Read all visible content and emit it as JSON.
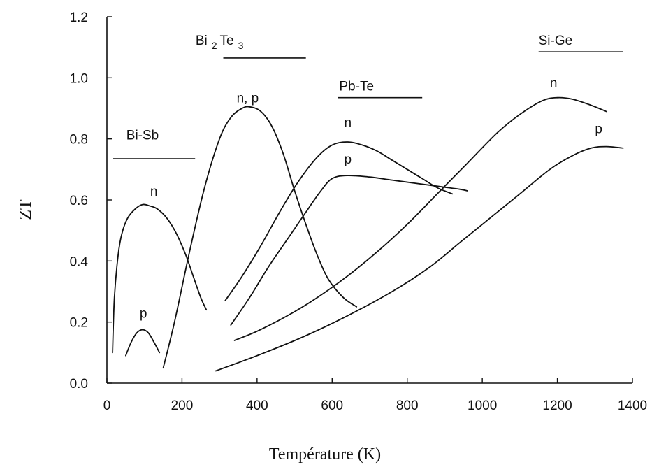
{
  "chart_data": {
    "type": "line",
    "title": "",
    "xlabel": "Température (K)",
    "ylabel": "ZT",
    "xlim": [
      0,
      1400
    ],
    "ylim": [
      0,
      1.2
    ],
    "xticks": [
      "0",
      "200",
      "400",
      "600",
      "800",
      "1000",
      "1200",
      "1400"
    ],
    "yticks": [
      "0.0",
      "0.2",
      "0.4",
      "0.6",
      "0.8",
      "1.0",
      "1.2"
    ],
    "grid": false,
    "legend": "none",
    "line_color": "#111111",
    "groups": [
      {
        "label": "Bi-Sb",
        "label_x": 95,
        "label_y": 0.775,
        "line_x": [
          15,
          235
        ],
        "line_y": 0.735
      },
      {
        "label": "Bi",
        "sub1": "2",
        "mid": "Te",
        "sub2": "3",
        "label_x": 300,
        "label_y": 1.085,
        "line_x": [
          310,
          530
        ],
        "line_y": 1.065
      },
      {
        "label": "Pb-Te",
        "label_x": 665,
        "label_y": 0.935,
        "line_x": [
          615,
          840
        ],
        "line_y": 0.935
      },
      {
        "label": "Si-Ge",
        "label_x": 1195,
        "label_y": 1.085,
        "line_x": [
          1150,
          1375
        ],
        "line_y": 1.085
      }
    ],
    "series": [
      {
        "name": "n",
        "group": "Bi-Sb",
        "label_x": 125,
        "label_y": 0.63,
        "x": [
          15,
          20,
          30,
          40,
          55,
          75,
          95,
          115,
          135,
          160,
          185,
          210,
          230,
          250,
          265
        ],
        "y": [
          0.1,
          0.28,
          0.42,
          0.49,
          0.54,
          0.57,
          0.585,
          0.58,
          0.57,
          0.54,
          0.49,
          0.42,
          0.35,
          0.28,
          0.24
        ]
      },
      {
        "name": "p",
        "group": "Bi-Sb",
        "label_x": 97,
        "label_y": 0.23,
        "x": [
          50,
          65,
          80,
          95,
          110,
          125,
          140
        ],
        "y": [
          0.09,
          0.135,
          0.165,
          0.175,
          0.165,
          0.135,
          0.1
        ]
      },
      {
        "name": "n, p",
        "group": "Bi2Te3",
        "label_x": 375,
        "label_y": 0.935,
        "x": [
          150,
          180,
          220,
          260,
          300,
          330,
          360,
          380,
          410,
          440,
          470,
          500,
          530,
          560,
          590,
          630,
          665
        ],
        "y": [
          0.05,
          0.2,
          0.43,
          0.64,
          0.8,
          0.87,
          0.9,
          0.905,
          0.89,
          0.84,
          0.75,
          0.63,
          0.52,
          0.42,
          0.34,
          0.28,
          0.25
        ]
      },
      {
        "name": "n",
        "group": "Pb-Te",
        "label_x": 642,
        "label_y": 0.855,
        "x": [
          315,
          360,
          410,
          460,
          510,
          560,
          600,
          640,
          680,
          720,
          760,
          800,
          840,
          880,
          920
        ],
        "y": [
          0.27,
          0.35,
          0.45,
          0.56,
          0.66,
          0.74,
          0.78,
          0.79,
          0.78,
          0.76,
          0.73,
          0.7,
          0.67,
          0.64,
          0.62
        ]
      },
      {
        "name": "p",
        "group": "Pb-Te",
        "label_x": 642,
        "label_y": 0.735,
        "x": [
          330,
          380,
          430,
          480,
          530,
          570,
          600,
          640,
          700,
          760,
          820,
          880,
          940,
          960
        ],
        "y": [
          0.19,
          0.28,
          0.38,
          0.47,
          0.56,
          0.63,
          0.67,
          0.68,
          0.675,
          0.665,
          0.655,
          0.645,
          0.635,
          0.63
        ]
      },
      {
        "name": "n",
        "group": "Si-Ge",
        "label_x": 1190,
        "label_y": 0.985,
        "x": [
          340,
          400,
          480,
          560,
          640,
          720,
          800,
          880,
          960,
          1040,
          1100,
          1160,
          1200,
          1240,
          1290,
          1330
        ],
        "y": [
          0.14,
          0.17,
          0.22,
          0.28,
          0.35,
          0.43,
          0.52,
          0.62,
          0.72,
          0.82,
          0.88,
          0.925,
          0.935,
          0.93,
          0.91,
          0.89
        ]
      },
      {
        "name": "p",
        "group": "Si-Ge",
        "label_x": 1310,
        "label_y": 0.835,
        "x": [
          290,
          400,
          520,
          640,
          760,
          860,
          940,
          1020,
          1100,
          1180,
          1240,
          1290,
          1330,
          1375
        ],
        "y": [
          0.04,
          0.09,
          0.15,
          0.22,
          0.3,
          0.38,
          0.46,
          0.54,
          0.62,
          0.7,
          0.745,
          0.77,
          0.775,
          0.77
        ]
      }
    ]
  }
}
